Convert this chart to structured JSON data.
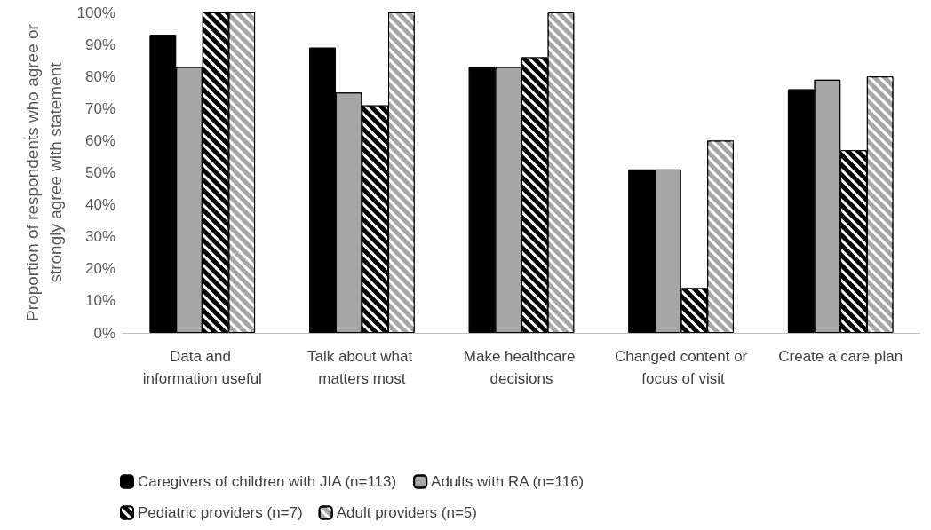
{
  "chart_data": {
    "type": "bar",
    "ylabel": "Proportion of respondents who agree or strongly agree with statement",
    "categories": [
      "Data and information useful",
      "Talk about what matters most",
      "Make healthcare decisions",
      "Changed content or focus of visit",
      "Create a care plan"
    ],
    "series": [
      {
        "name": "Caregivers of children with JIA (n=113)",
        "color": "#000000",
        "values": [
          93,
          89,
          83,
          51,
          76
        ]
      },
      {
        "name": "Adults with RA (n=116)",
        "color": "#a6a6a6",
        "values": [
          83,
          75,
          83,
          51,
          79
        ]
      },
      {
        "name": "Pediatric providers (n=7)",
        "color": "#000000",
        "values": [
          100,
          71,
          86,
          14,
          57
        ]
      },
      {
        "name": "Adult providers (n=5)",
        "color": "#a6a6a6",
        "values": [
          100,
          100,
          100,
          60,
          80
        ]
      }
    ],
    "ylim": [
      0,
      100
    ],
    "yticks": [
      {
        "value": 0,
        "label": "0%"
      },
      {
        "value": 10,
        "label": "10%"
      },
      {
        "value": 20,
        "label": "20%"
      },
      {
        "value": 30,
        "label": "30%"
      },
      {
        "value": 40,
        "label": "40%"
      },
      {
        "value": 50,
        "label": "50%"
      },
      {
        "value": 60,
        "label": "60%"
      },
      {
        "value": 70,
        "label": "70%"
      },
      {
        "value": 80,
        "label": "80%"
      },
      {
        "value": 90,
        "label": "90%"
      },
      {
        "value": 100,
        "label": "100%"
      }
    ],
    "legend": "bottom"
  }
}
